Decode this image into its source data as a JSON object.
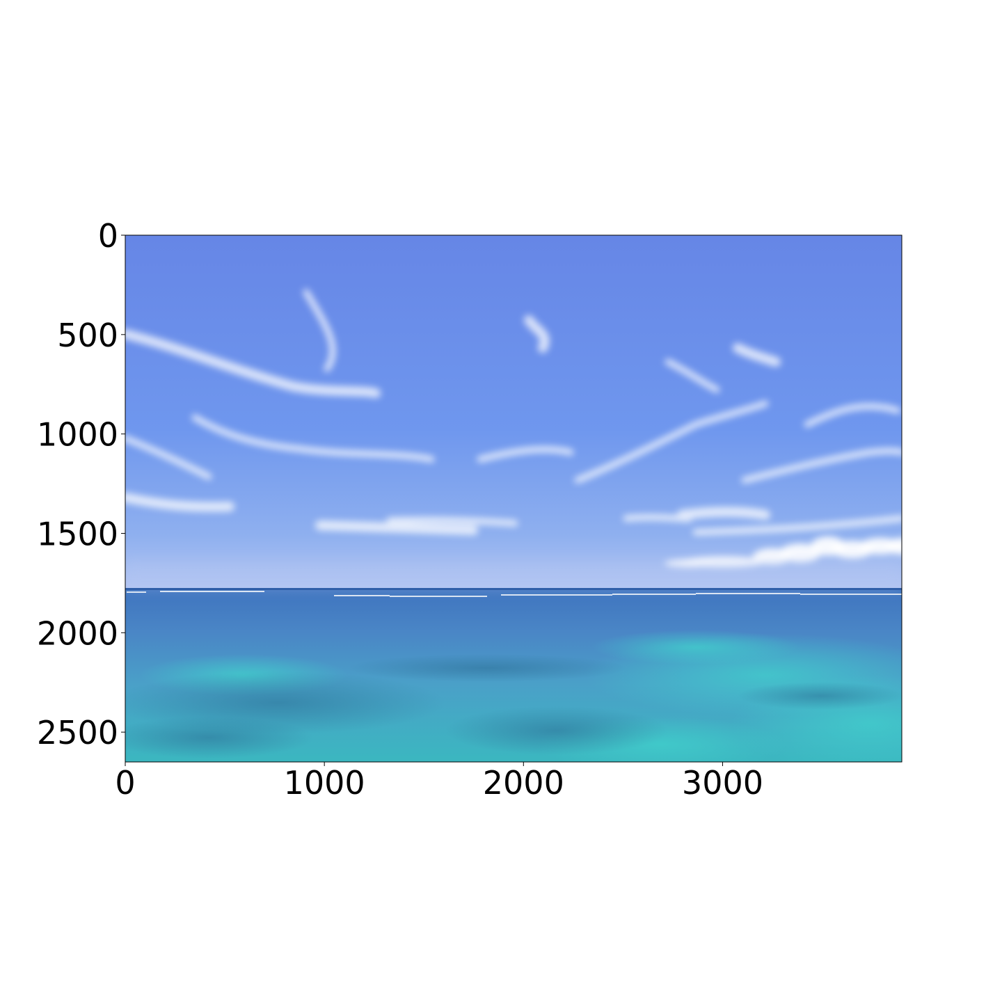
{
  "image": {
    "description_free": true,
    "extent": {
      "x": [
        0,
        3900
      ],
      "y": [
        2650,
        0
      ]
    },
    "x_axis": {
      "ticks": [
        0,
        1000,
        2000,
        3000
      ],
      "labels": [
        "0",
        "1000",
        "2000",
        "3000"
      ]
    },
    "y_axis": {
      "ticks": [
        0,
        500,
        1000,
        1500,
        2000,
        2500
      ],
      "labels": [
        "0",
        "500",
        "1000",
        "1500",
        "2000",
        "2500"
      ]
    },
    "horizon_y": 1780,
    "colors": {
      "sky_top": "#6686e6",
      "sky_mid": "#6f97ee",
      "sky_horizon": "#b4c6f2",
      "sea_far": "#3f74bf",
      "sea_mid": "#4aa0c8",
      "sea_near": "#3bb7c0",
      "sea_bright": "#41d0cc",
      "cloud": "#ffffff",
      "frame": "#000000",
      "background": "#ffffff"
    }
  }
}
